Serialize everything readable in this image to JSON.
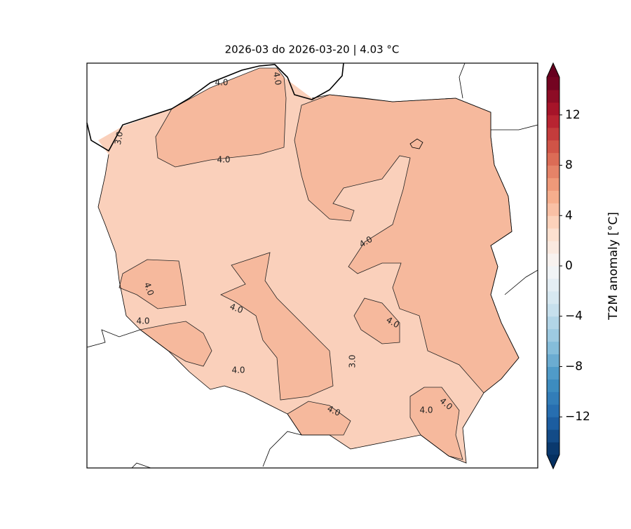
{
  "map": {
    "title": "2026-03 do 2026-03-20 | 4.03 °C",
    "colorbar": {
      "label": "T2M anomaly [°C]",
      "lim": [
        -15,
        15
      ],
      "step": 1,
      "ticks": [
        {
          "value": -12,
          "label": "−12"
        },
        {
          "value": -8,
          "label": "−8"
        },
        {
          "value": -4,
          "label": "−4"
        },
        0,
        4,
        8,
        12
      ],
      "colors": [
        "#053061",
        "#2166ac",
        "#4393c3",
        "#92c5de",
        "#d1e5f0",
        "#f7f7f7",
        "#fddbc7",
        "#f4a582",
        "#d6604d",
        "#b2182b",
        "#67001f"
      ]
    },
    "contour_labels": [
      "4.0",
      "4.0",
      "3.0",
      "4.0",
      "4.0",
      "4.0",
      "4.0",
      "4.0",
      "4.0",
      "3.0",
      "4.0",
      "4.0",
      "4.0",
      "4.0"
    ]
  }
}
